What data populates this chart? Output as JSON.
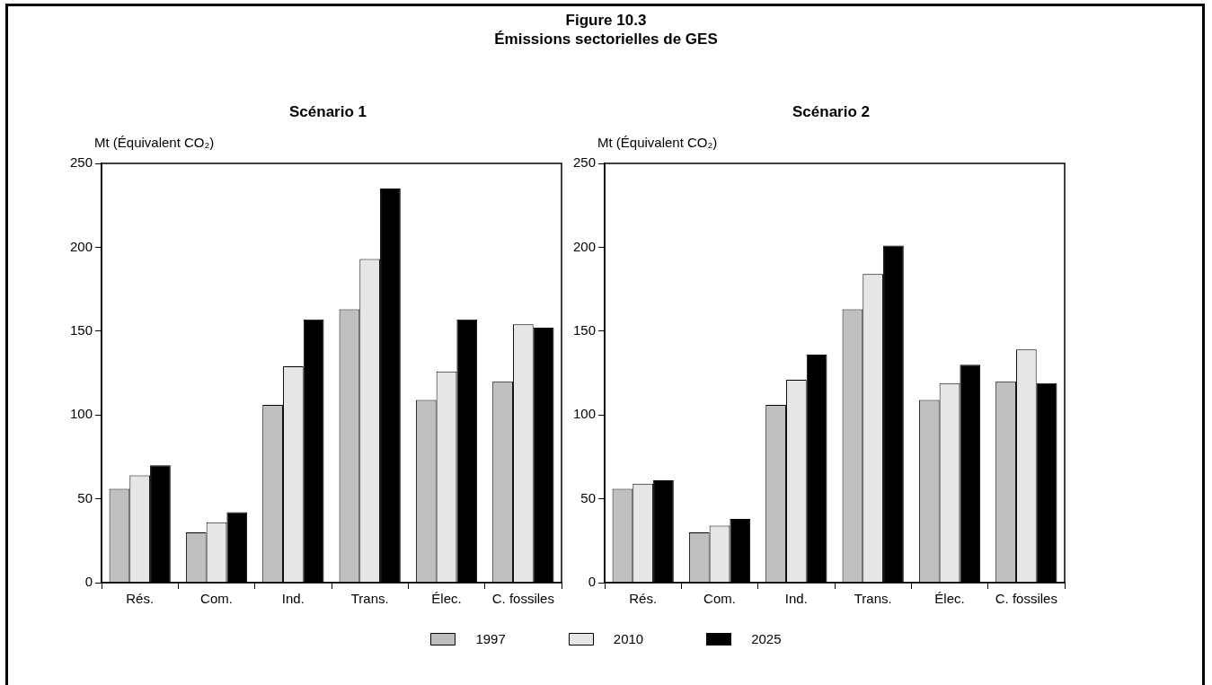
{
  "chart_data": [
    {
      "type": "bar",
      "title": "Scénario 1",
      "annotations": [
        "Figure 10.3",
        "Émissions sectorielles de GES"
      ],
      "ylabel": "Mt (Équivalent CO₂)",
      "categories": [
        "Rés.",
        "Com.",
        "Ind.",
        "Trans.",
        "Élec.",
        "C. fossiles"
      ],
      "ylim": [
        0,
        250
      ],
      "yticks": [
        0,
        50,
        100,
        150,
        200,
        250
      ],
      "grid": false,
      "legend": "bottom",
      "series": [
        {
          "name": "1997",
          "color": "#bfbfbf",
          "values": [
            56,
            30,
            106,
            163,
            109,
            120
          ]
        },
        {
          "name": "2010",
          "color": "#e6e6e6",
          "values": [
            64,
            36,
            129,
            193,
            126,
            154
          ]
        },
        {
          "name": "2025",
          "color": "#000000",
          "values": [
            70,
            42,
            157,
            235,
            157,
            152
          ]
        }
      ]
    },
    {
      "type": "bar",
      "title": "Scénario 2",
      "ylabel": "Mt (Équivalent CO₂)",
      "categories": [
        "Rés.",
        "Com.",
        "Ind.",
        "Trans.",
        "Élec.",
        "C. fossiles"
      ],
      "ylim": [
        0,
        250
      ],
      "yticks": [
        0,
        50,
        100,
        150,
        200,
        250
      ],
      "grid": false,
      "legend": "bottom",
      "series": [
        {
          "name": "1997",
          "color": "#bfbfbf",
          "values": [
            56,
            30,
            106,
            163,
            109,
            120
          ]
        },
        {
          "name": "2010",
          "color": "#e6e6e6",
          "values": [
            59,
            34,
            121,
            184,
            119,
            139
          ]
        },
        {
          "name": "2025",
          "color": "#000000",
          "values": [
            61,
            38,
            136,
            201,
            130,
            119
          ]
        }
      ]
    }
  ]
}
